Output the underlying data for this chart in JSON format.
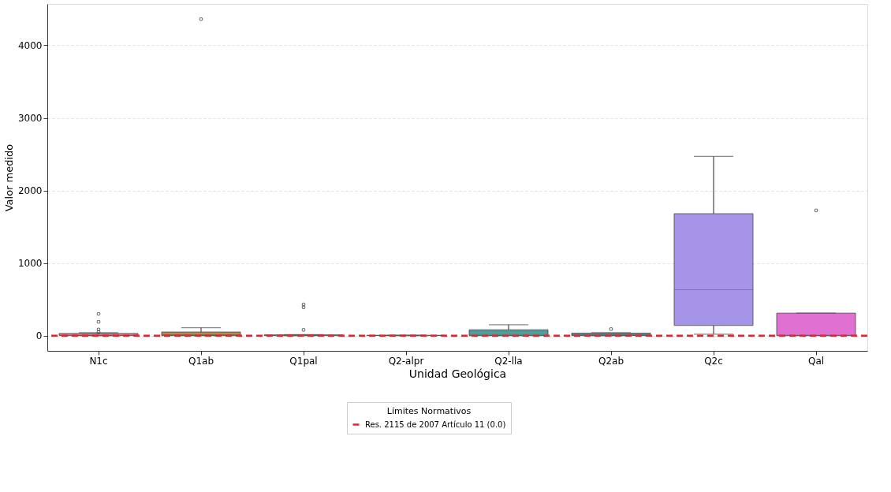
{
  "chart_data": {
    "type": "box",
    "xlabel": "Unidad Geológica",
    "ylabel": "Valor medido",
    "categories": [
      "N1c",
      "Q1ab",
      "Q1pal",
      "Q2-alpr",
      "Q2-lla",
      "Q2ab",
      "Q2c",
      "Qal"
    ],
    "colors": [
      "#d9737f",
      "#b88a4a",
      "#9b9a4c",
      "#5ea35a",
      "#4b9f98",
      "#3f9bb0",
      "#a594e8",
      "#e070d2"
    ],
    "boxes": [
      {
        "low": 0,
        "q1": 0,
        "median": 3,
        "q3": 30,
        "high": 40,
        "outliers": [
          50,
          85,
          190,
          300
        ]
      },
      {
        "low": 0,
        "q1": 0,
        "median": 10,
        "q3": 50,
        "high": 110,
        "outliers": [
          4360
        ]
      },
      {
        "low": 0,
        "q1": 0,
        "median": 5,
        "q3": 10,
        "high": 15,
        "outliers": [
          80,
          390,
          430
        ]
      },
      {
        "low": 0,
        "q1": 0,
        "median": 2,
        "q3": 5,
        "high": 5
      },
      {
        "low": 0,
        "q1": 0,
        "median": 5,
        "q3": 80,
        "high": 150
      },
      {
        "low": 0,
        "q1": 0,
        "median": 10,
        "q3": 35,
        "high": 40,
        "outliers": [
          90
        ]
      },
      {
        "low": 20,
        "q1": 140,
        "median": 630,
        "q3": 1680,
        "high": 2470
      },
      {
        "low": 0,
        "q1": 0,
        "median": 5,
        "q3": 310,
        "high": 310,
        "outliers": [
          1725
        ]
      }
    ],
    "ylim": [
      -210,
      4570
    ],
    "yticks": [
      0,
      1000,
      2000,
      3000,
      4000
    ],
    "grid": "y",
    "legend_title": "Límites Normativos",
    "legend": "bottom",
    "ref_lines": [
      {
        "axis": "y",
        "value": 0,
        "label": "Res. 2115 de 2007 Artículo 11 (0.0)",
        "color": "#e8212b",
        "line_style": "dashed"
      }
    ]
  }
}
